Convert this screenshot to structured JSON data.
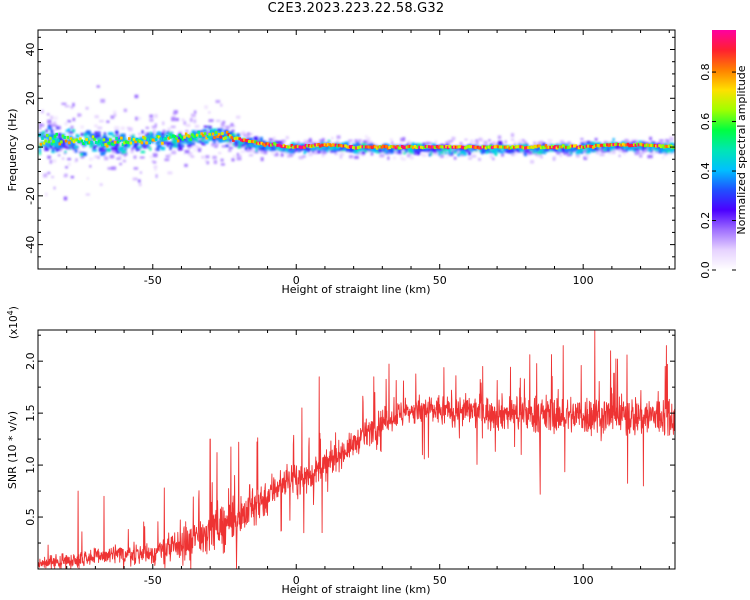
{
  "title": "C2E3.2023.223.22.58.G32",
  "colors": {
    "line": "#ee3333",
    "axis": "#000000",
    "colormap": [
      "#ffffff",
      "#e6d2ff",
      "#a070ff",
      "#4b00ff",
      "#2050ff",
      "#00c0ff",
      "#00e6b4",
      "#00ff40",
      "#a0ff00",
      "#ffe000",
      "#ff8000",
      "#ff2030",
      "#ff00a0"
    ]
  },
  "chart_data": [
    {
      "type": "heatmap",
      "xlabel": "Height of straight line (km)",
      "ylabel": "Frequency (Hz)",
      "xlim": [
        -90,
        132
      ],
      "ylim": [
        -50,
        48
      ],
      "xticks": [
        -50,
        0,
        50,
        100
      ],
      "xtick_labels": [
        "-50",
        "0",
        "50",
        "100"
      ],
      "yticks": [
        -40,
        -20,
        0,
        20,
        40
      ],
      "ytick_labels": [
        "-40",
        "-20",
        "0",
        "20",
        "40"
      ],
      "colorbar": {
        "label": "Normalized spectral amplitude",
        "range": [
          0,
          0.97
        ],
        "ticks": [
          0.0,
          0.2,
          0.4,
          0.6,
          0.8
        ],
        "tick_labels": [
          "0.0",
          "0.2",
          "0.4",
          "0.6",
          "0.8"
        ]
      },
      "ridge_center_hz": [
        [
          -90,
          3
        ],
        [
          -80,
          3
        ],
        [
          -70,
          2
        ],
        [
          -60,
          2
        ],
        [
          -50,
          3
        ],
        [
          -40,
          4
        ],
        [
          -30,
          5
        ],
        [
          -25,
          5
        ],
        [
          -20,
          3
        ],
        [
          -15,
          2
        ],
        [
          -10,
          1
        ],
        [
          0,
          0
        ],
        [
          10,
          1
        ],
        [
          20,
          0
        ],
        [
          40,
          0
        ],
        [
          60,
          0
        ],
        [
          80,
          0
        ],
        [
          100,
          0
        ],
        [
          110,
          1
        ],
        [
          118,
          1
        ],
        [
          132,
          0
        ]
      ],
      "ridge_halfwidth_hz": [
        [
          -90,
          7
        ],
        [
          -70,
          7
        ],
        [
          -50,
          6
        ],
        [
          -35,
          5
        ],
        [
          -20,
          4
        ],
        [
          -10,
          2.5
        ],
        [
          0,
          2.5
        ],
        [
          50,
          2.5
        ],
        [
          100,
          2.5
        ],
        [
          132,
          2.5
        ]
      ]
    },
    {
      "type": "line",
      "xlabel": "Height of straight line (km)",
      "ylabel": "SNR (10 * v/v)",
      "multiplier_label": "(x10",
      "multiplier_exponent": "4",
      "multiplier_suffix": ")",
      "xlim": [
        -90,
        132
      ],
      "ylim": [
        0,
        2.3
      ],
      "xticks": [
        -50,
        0,
        50,
        100
      ],
      "xtick_labels": [
        "-50",
        "0",
        "50",
        "100"
      ],
      "yticks": [
        0.5,
        1.0,
        1.5,
        2.0
      ],
      "ytick_labels": [
        "0.5",
        "1.0",
        "1.5",
        "2.0"
      ],
      "series": [
        {
          "envelope_x": [
            -90,
            -80,
            -70,
            -60,
            -50,
            -40,
            -30,
            -20,
            -15,
            -10,
            -5,
            0,
            5,
            10,
            15,
            20,
            25,
            30,
            35,
            40,
            50,
            60,
            70,
            80,
            90,
            100,
            110,
            120,
            132
          ],
          "baseline": [
            0.05,
            0.08,
            0.12,
            0.14,
            0.15,
            0.22,
            0.38,
            0.5,
            0.6,
            0.7,
            0.85,
            0.85,
            0.9,
            1.0,
            1.1,
            1.2,
            1.32,
            1.42,
            1.48,
            1.52,
            1.53,
            1.52,
            1.5,
            1.5,
            1.48,
            1.48,
            1.47,
            1.47,
            1.47
          ],
          "noise": [
            0.06,
            0.08,
            0.1,
            0.1,
            0.12,
            0.18,
            0.25,
            0.25,
            0.22,
            0.2,
            0.18,
            0.16,
            0.15,
            0.15,
            0.14,
            0.13,
            0.14,
            0.14,
            0.15,
            0.15,
            0.16,
            0.17,
            0.18,
            0.19,
            0.2,
            0.21,
            0.22,
            0.22,
            0.22
          ],
          "peaks": [
            [
              -76,
              0.75
            ],
            [
              -67,
              0.7
            ],
            [
              -46,
              0.78
            ],
            [
              -30,
              1.25
            ],
            [
              -20,
              1.22
            ],
            [
              2,
              1.55
            ],
            [
              8,
              1.85
            ],
            [
              27,
              1.85
            ],
            [
              65,
              1.95
            ],
            [
              93,
              2.15
            ],
            [
              104,
              2.3
            ],
            [
              112,
              2.02
            ],
            [
              129,
              2.15
            ]
          ],
          "dips": [
            [
              6,
              0.62
            ],
            [
              9,
              0.35
            ],
            [
              13,
              0.95
            ],
            [
              28,
              1.15
            ],
            [
              44,
              1.1
            ],
            [
              85,
              0.72
            ],
            [
              121,
              0.8
            ]
          ]
        }
      ]
    }
  ]
}
